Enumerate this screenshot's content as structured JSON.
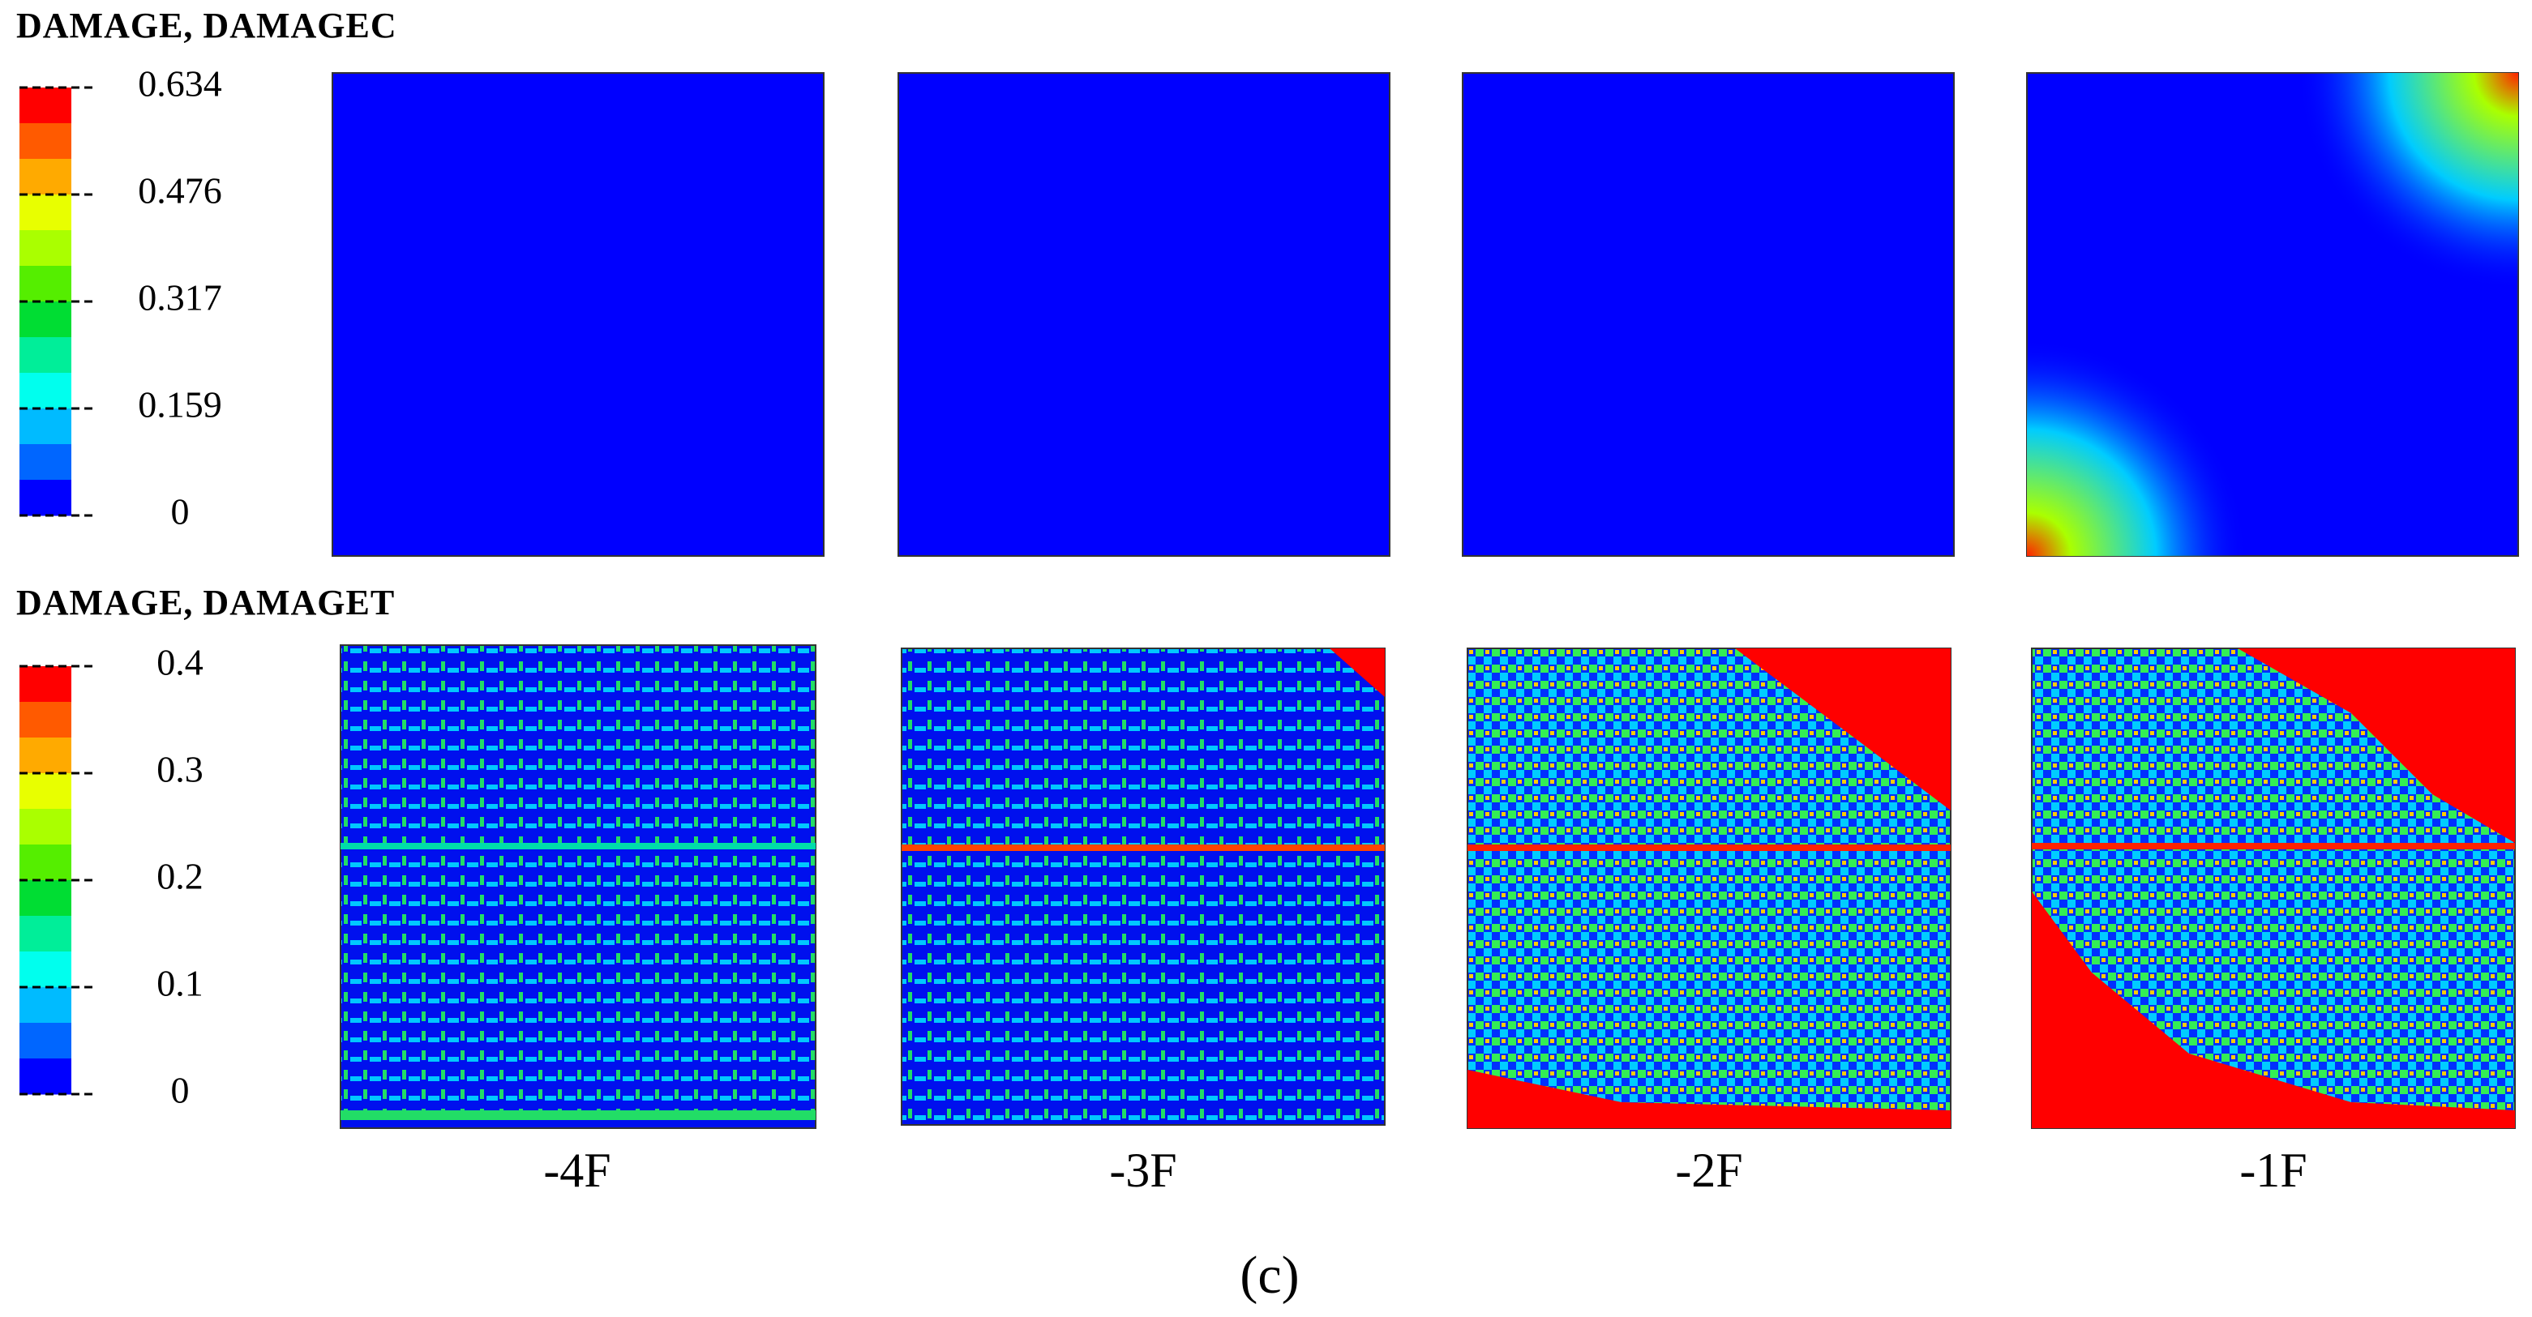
{
  "rows": [
    {
      "title": "DAMAGE, DAMAGEC",
      "legend_ticks": [
        "0.634",
        "0.476",
        "0.317",
        "0.159",
        "0"
      ]
    },
    {
      "title": "DAMAGE, DAMAGET",
      "legend_ticks": [
        "0.4",
        "0.3",
        "0.2",
        "0.1",
        "0"
      ]
    }
  ],
  "panel_labels": [
    "-4F",
    "-3F",
    "-2F",
    "-1F"
  ],
  "caption": "(c)"
}
